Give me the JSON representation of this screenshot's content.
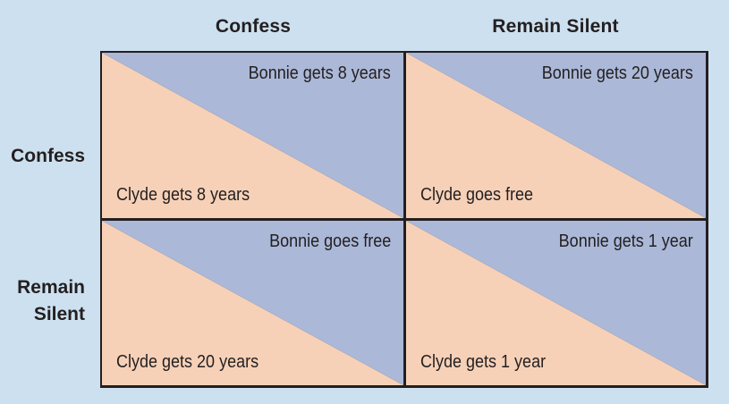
{
  "colors": {
    "background": "#cde0ef",
    "bonnie_region": "#abb8d8",
    "clyde_region": "#f6d1b8",
    "border": "#231f20"
  },
  "columns": [
    "Confess",
    "Remain Silent"
  ],
  "rows": [
    [
      "Confess"
    ],
    [
      "Remain",
      "Silent"
    ]
  ],
  "cells": [
    [
      {
        "bonnie": "Bonnie gets 8 years",
        "clyde": "Clyde gets 8 years"
      },
      {
        "bonnie": "Bonnie gets 20 years",
        "clyde": "Clyde goes free"
      }
    ],
    [
      {
        "bonnie": "Bonnie goes free",
        "clyde": "Clyde gets 20 years"
      },
      {
        "bonnie": "Bonnie gets 1 year",
        "clyde": "Clyde gets 1 year"
      }
    ]
  ]
}
